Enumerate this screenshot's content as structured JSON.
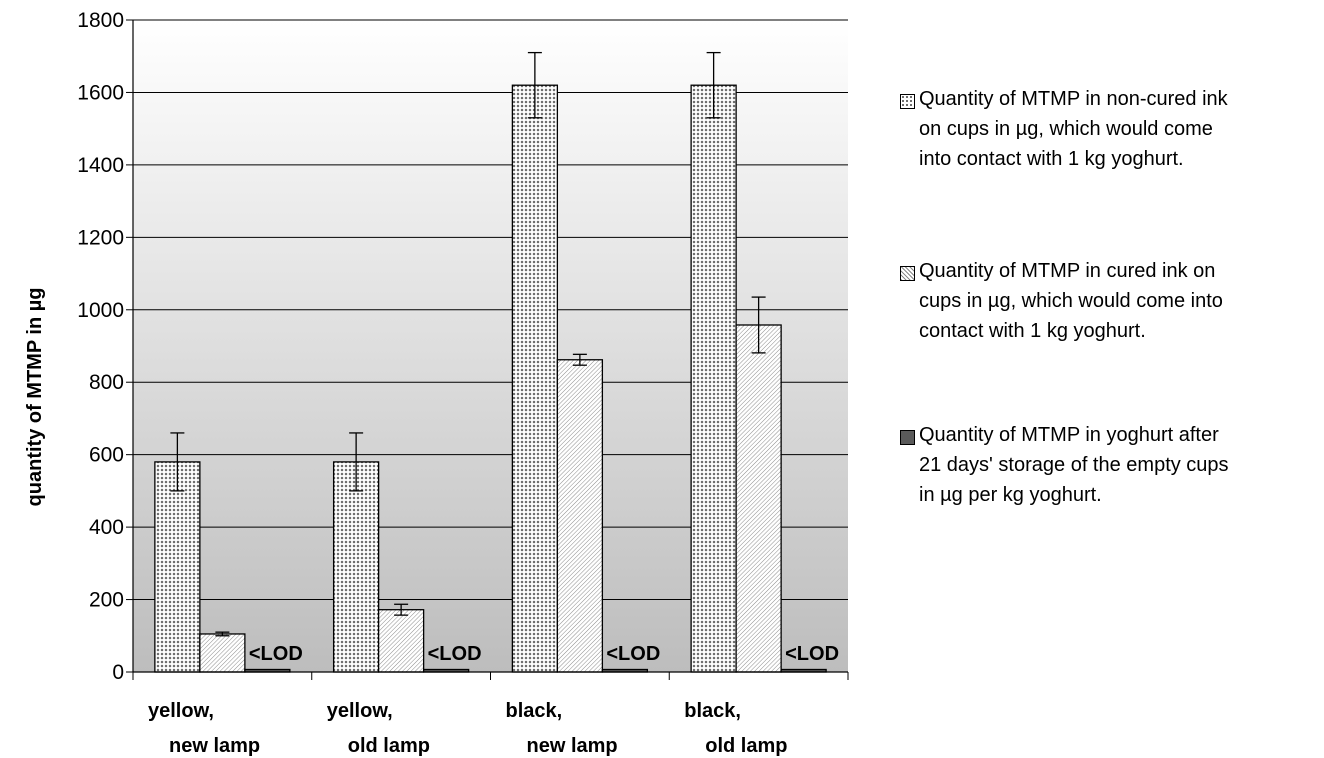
{
  "chart_data": {
    "type": "bar",
    "categories": [
      [
        "yellow,",
        "new lamp"
      ],
      [
        "yellow,",
        "old lamp"
      ],
      [
        "black,",
        "new lamp"
      ],
      [
        "black,",
        "old lamp"
      ]
    ],
    "ylabel": "quantity of MTMP in µg",
    "ylim": [
      0,
      1800
    ],
    "yticks": [
      0,
      200,
      400,
      600,
      800,
      1000,
      1200,
      1400,
      1600,
      1800
    ],
    "grid": true,
    "legend_position": "right",
    "series": [
      {
        "name": "Quantity of MTMP in non-cured ink on cups in µg, which would  come into contact with 1 kg yoghurt.",
        "legend_lines": [
          "Quantity of MTMP in non-cured ink",
          "on cups in µg, which would  come",
          "into contact with 1 kg yoghurt."
        ],
        "values": [
          580,
          580,
          1620,
          1620
        ],
        "errors": [
          80,
          80,
          90,
          90
        ],
        "pattern": "dots"
      },
      {
        "name": "Quantity of MTMP in cured ink on cups in µg, which would come into contact with 1 kg yoghurt.",
        "legend_lines": [
          "Quantity of MTMP in cured ink on",
          "cups in µg, which would come into",
          "contact with 1 kg yoghurt."
        ],
        "values": [
          105,
          172,
          862,
          958
        ],
        "errors": [
          5,
          15,
          15,
          77
        ],
        "pattern": "hatch"
      },
      {
        "name": "Quantity of MTMP in yoghurt after 21 days' storage of the empty cups in µg per kg yoghurt.",
        "legend_lines": [
          "Quantity of MTMP in yoghurt after",
          "21 days' storage of the empty cups",
          "in µg per kg yoghurt."
        ],
        "values": [
          0,
          0,
          0,
          0
        ],
        "errors": [
          null,
          null,
          null,
          null
        ],
        "pattern": "dark",
        "value_labels": [
          "<LOD",
          "<LOD",
          "<LOD",
          "<LOD"
        ]
      }
    ]
  }
}
